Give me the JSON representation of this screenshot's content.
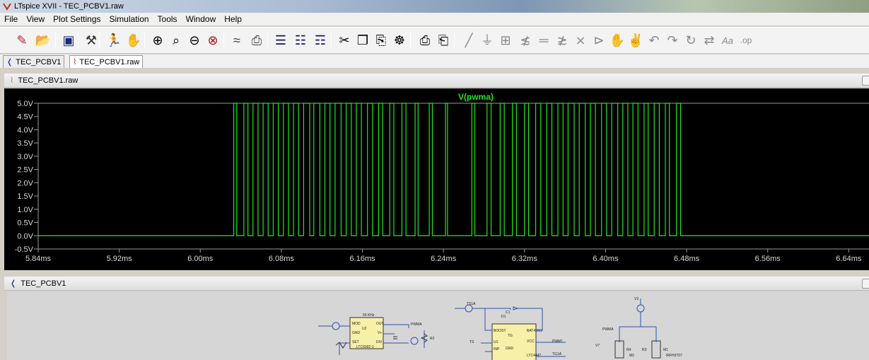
{
  "window": {
    "title": "LTspice XVII - TEC_PCBV1.raw"
  },
  "menu": {
    "items": [
      "File",
      "View",
      "Plot Settings",
      "Simulation",
      "Tools",
      "Window",
      "Help"
    ]
  },
  "toolbar": {
    "icons": [
      "edit-icon",
      "open-icon",
      "save-icon",
      "control-panel-icon",
      "run-icon",
      "pan-icon",
      "zoom-in-icon",
      "zoom-area-icon",
      "zoom-out-icon",
      "zoom-fit-icon",
      "autorange-icon",
      "fft-icon",
      "tile-horizontal-icon",
      "cascade-icon",
      "tile-vertical-icon",
      "cut-icon",
      "copy-icon",
      "paste-icon",
      "find-icon",
      "print-icon",
      "print-setup-icon",
      "wire-icon",
      "ground-icon",
      "label-net-icon",
      "resistor-icon",
      "capacitor-icon",
      "inductor-icon",
      "diode-icon",
      "component-icon",
      "move-icon",
      "drag-icon",
      "undo-icon",
      "redo-icon",
      "rotate-icon",
      "mirror-icon",
      "text-icon",
      "spice-directive-icon"
    ]
  },
  "tabs": [
    {
      "label": "TEC_PCBV1",
      "icon": "schematic-icon"
    },
    {
      "label": "TEC_PCBV1.raw",
      "icon": "waveform-icon"
    }
  ],
  "plot_window": {
    "title": "TEC_PCBV1.raw"
  },
  "schematic_window": {
    "title": "TEC_PCBV1"
  },
  "colors": {
    "trace": "#22e61e",
    "grid": "#9a9a9a",
    "plot_bg": "#000000"
  },
  "chart_data": {
    "type": "line",
    "title": "V(pwma)",
    "series": [
      {
        "name": "V(pwma)",
        "color": "#22e61e"
      }
    ],
    "xlabel": "",
    "ylabel": "",
    "x_unit": "ms",
    "xlim": [
      5.84,
      6.66
    ],
    "ylim": [
      -0.5,
      5.0
    ],
    "x_ticks": [
      "5.84ms",
      "5.92ms",
      "6.00ms",
      "6.08ms",
      "6.16ms",
      "6.24ms",
      "6.32ms",
      "6.40ms",
      "6.48ms",
      "6.56ms",
      "6.64ms"
    ],
    "x_tick_values": [
      5.84,
      5.92,
      6.0,
      6.08,
      6.16,
      6.24,
      6.32,
      6.4,
      6.48,
      6.56,
      6.64
    ],
    "y_ticks": [
      "5.0V",
      "4.5V",
      "4.0V",
      "3.5V",
      "3.0V",
      "2.5V",
      "2.0V",
      "1.5V",
      "1.0V",
      "0.5V",
      "0.0V",
      "-0.5V"
    ],
    "y_tick_values": [
      5.0,
      4.5,
      4.0,
      3.5,
      3.0,
      2.5,
      2.0,
      1.5,
      1.0,
      0.5,
      0.0,
      -0.5
    ],
    "low_level": 0.0,
    "high_level": 5.0,
    "pulses_ms": [
      [
        6.033,
        6.036
      ],
      [
        6.043,
        6.047
      ],
      [
        6.052,
        6.057
      ],
      [
        6.062,
        6.067
      ],
      [
        6.072,
        6.077
      ],
      [
        6.082,
        6.087
      ],
      [
        6.092,
        6.097
      ],
      [
        6.102,
        6.108
      ],
      [
        6.112,
        6.118
      ],
      [
        6.123,
        6.128
      ],
      [
        6.133,
        6.139
      ],
      [
        6.144,
        6.149
      ],
      [
        6.154,
        6.159
      ],
      [
        6.165,
        6.17
      ],
      [
        6.176,
        6.18
      ],
      [
        6.187,
        6.191
      ],
      [
        6.199,
        6.203
      ],
      [
        6.212,
        6.215
      ],
      [
        6.226,
        6.229
      ],
      [
        6.242,
        6.244
      ],
      [
        6.268,
        6.271
      ],
      [
        6.283,
        6.287
      ],
      [
        6.296,
        6.3
      ],
      [
        6.308,
        6.312
      ],
      [
        6.32,
        6.324
      ],
      [
        6.331,
        6.336
      ],
      [
        6.342,
        6.347
      ],
      [
        6.353,
        6.358
      ],
      [
        6.363,
        6.369
      ],
      [
        6.374,
        6.38
      ],
      [
        6.385,
        6.39
      ],
      [
        6.396,
        6.401
      ],
      [
        6.406,
        6.412
      ],
      [
        6.417,
        6.422
      ],
      [
        6.427,
        6.432
      ],
      [
        6.438,
        6.442
      ],
      [
        6.448,
        6.453
      ],
      [
        6.459,
        6.463
      ],
      [
        6.47,
        6.474
      ]
    ],
    "grid": false,
    "legend": "top-center"
  },
  "schematic": {
    "labels": [
      "50 KHz",
      "MOD",
      "OUT",
      "GND",
      "V+",
      "SET",
      "DIV",
      "U2",
      "LTC6992-1",
      "PWMA",
      "R1",
      "R2",
      "C1",
      "D1",
      "BAT46WJ",
      "BOOST",
      "VCC",
      "TG",
      "U1",
      "INP",
      "GND",
      "LTC4442",
      "TS",
      "PWM1",
      "TG1A",
      "TS1A",
      "V1",
      "V2",
      "V3",
      "V7",
      "R3",
      "R4",
      "M1",
      "M2",
      "IRFH3707",
      "IRFH3707"
    ]
  }
}
